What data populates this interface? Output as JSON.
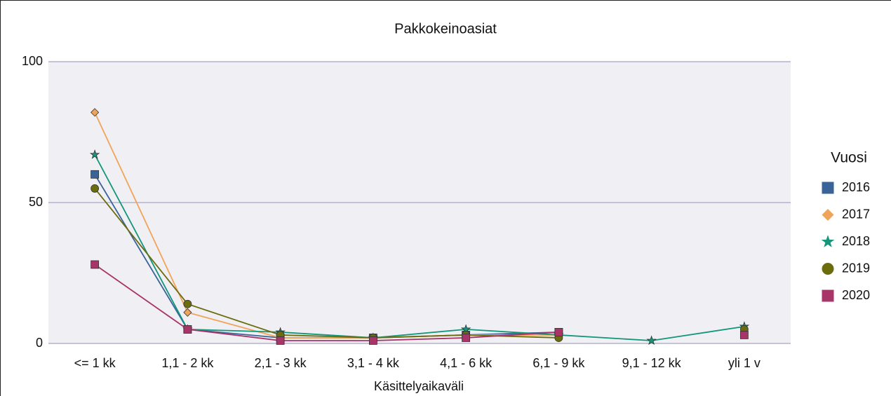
{
  "chart_data": {
    "type": "line",
    "title": "Pakkokeinoasiat",
    "x_label": "Käsittelyaikaväli",
    "categories": [
      "<= 1 kk",
      "1,1 - 2 kk",
      "2,1 - 3 kk",
      "3,1 - 4 kk",
      "4,1 - 6 kk",
      "6,1 - 9 kk",
      "9,1 - 12 kk",
      "yli 1 v"
    ],
    "legend_title": "Vuosi",
    "legend": "right",
    "series": [
      {
        "name": "2016",
        "color": "#3a6398",
        "marker": "square",
        "values": [
          60,
          5,
          2,
          2,
          3,
          4,
          null,
          null
        ]
      },
      {
        "name": "2017",
        "color": "#f0a458",
        "marker": "diamond",
        "values": [
          82,
          11,
          2,
          2,
          3,
          3,
          null,
          null
        ]
      },
      {
        "name": "2018",
        "color": "#13967a",
        "marker": "star",
        "values": [
          67,
          5,
          4,
          2,
          5,
          3,
          1,
          6
        ]
      },
      {
        "name": "2019",
        "color": "#6b6c0e",
        "marker": "circle",
        "values": [
          55,
          14,
          3,
          2,
          3,
          2,
          null,
          5
        ]
      },
      {
        "name": "2020",
        "color": "#a83568",
        "marker": "square",
        "values": [
          28,
          5,
          1,
          1,
          2,
          4,
          null,
          3
        ]
      }
    ],
    "ylim": [
      0,
      100
    ],
    "yticks": [
      0,
      50,
      100
    ],
    "grid": true
  }
}
